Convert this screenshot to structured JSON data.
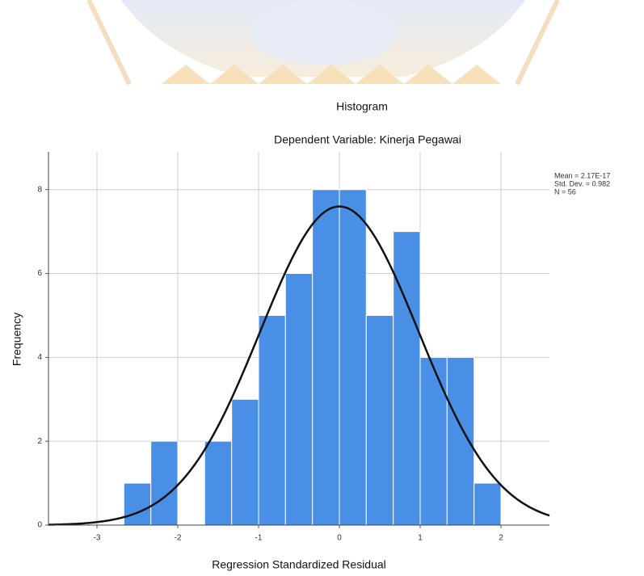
{
  "chart_data": {
    "type": "histogram",
    "title": "Histogram",
    "subtitle": "Dependent Variable: Kinerja Pegawai",
    "x_label": "Regression Standardized Residual",
    "y_label": "Frequency",
    "bins": [
      -2.667,
      -2.333,
      -2,
      -1.667,
      -1.333,
      -1,
      -0.667,
      -0.333,
      0,
      0.333,
      0.667,
      1,
      1.333,
      1.667,
      2
    ],
    "values": [
      1,
      2,
      0,
      2,
      3,
      5,
      6,
      8,
      8,
      5,
      7,
      4,
      4,
      1
    ],
    "color": "#4a8fe6",
    "curve_color": "#111111",
    "normal_curve": {
      "mean": 2.17e-17,
      "std": 0.982,
      "n": 56,
      "labels": [
        "Mean = 2.17E-17",
        "Std. Dev. = 0.982",
        "N = 56"
      ]
    },
    "xlim": [
      -3.6,
      2.6
    ],
    "ylim": [
      0,
      8.9
    ],
    "xticks": [
      -3,
      -2,
      -1,
      0,
      1,
      2
    ],
    "yticks": [
      0,
      2,
      4,
      6,
      8
    ],
    "grid": true
  }
}
